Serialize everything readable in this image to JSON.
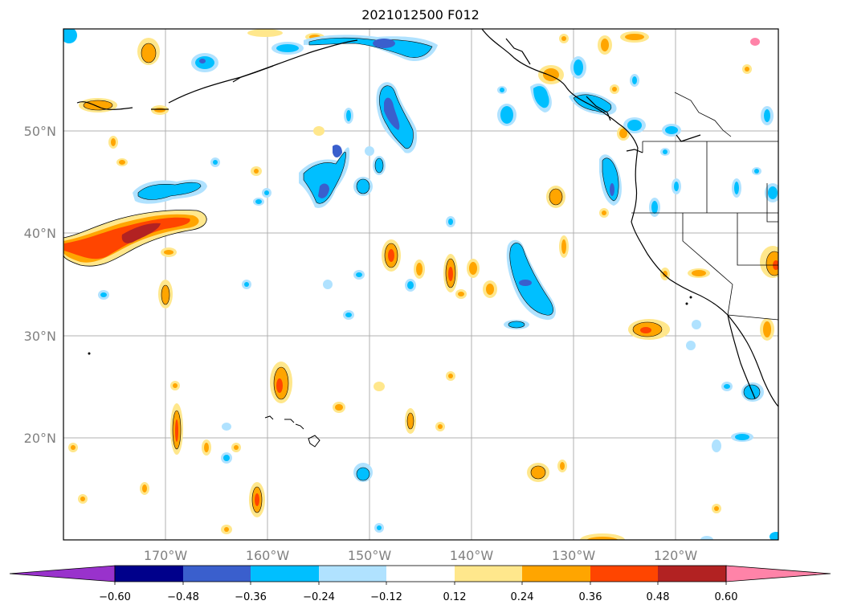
{
  "title": "2021012500 F012",
  "lat_labels": [
    "50°N",
    "40°N",
    "30°N",
    "20°N"
  ],
  "lon_labels": [
    "170°W",
    "160°W",
    "150°W",
    "140°W",
    "130°W",
    "120°W"
  ],
  "colorbar": {
    "labels": [
      "−0.60",
      "−0.48",
      "−0.36",
      "−0.24",
      "−0.12",
      "0.12",
      "0.24",
      "0.36",
      "0.48",
      "0.60"
    ],
    "colors": [
      "#9932cc",
      "#00008b",
      "#3a5fcd",
      "#00bfff",
      "#b0e2ff",
      "#ffffff",
      "#ffe78c",
      "#ffa500",
      "#ff4500",
      "#b22222",
      "#ff83a8"
    ]
  }
}
